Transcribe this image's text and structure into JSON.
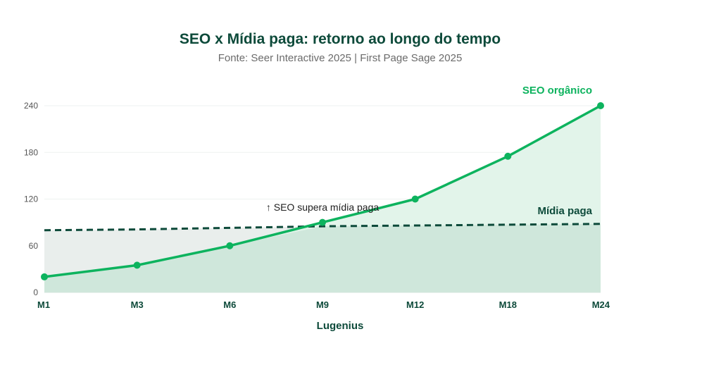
{
  "chart_data": {
    "type": "line",
    "title": "SEO x Mídia paga: retorno ao longo do tempo",
    "subtitle": "Fonte: Seer Interactive 2025 | First Page Sage 2025",
    "xlabel": "Lugenius",
    "ylabel": "",
    "categories": [
      "M1",
      "M3",
      "M6",
      "M9",
      "M12",
      "M18",
      "M24"
    ],
    "yticks": [
      "0",
      "60",
      "120",
      "180",
      "240"
    ],
    "ylim": [
      0,
      240
    ],
    "grid": true,
    "series": [
      {
        "name": "SEO orgânico",
        "values": [
          20,
          35,
          60,
          90,
          120,
          175,
          240
        ],
        "color": "#0db35e",
        "style": "solid",
        "markers": true
      },
      {
        "name": "Mídia paga",
        "values": [
          80,
          81,
          83,
          85,
          86,
          87,
          88
        ],
        "color": "#0d4a3a",
        "style": "dashed",
        "markers": false
      }
    ],
    "annotations": [
      {
        "text": "↑ SEO supera mídia paga",
        "at": "M9"
      }
    ],
    "colors": {
      "seo_fill": "#dff3e8",
      "paid_fill": "#e9eeec",
      "overlap_fill": "#cfe7db",
      "grid": "#eef2f0"
    }
  }
}
